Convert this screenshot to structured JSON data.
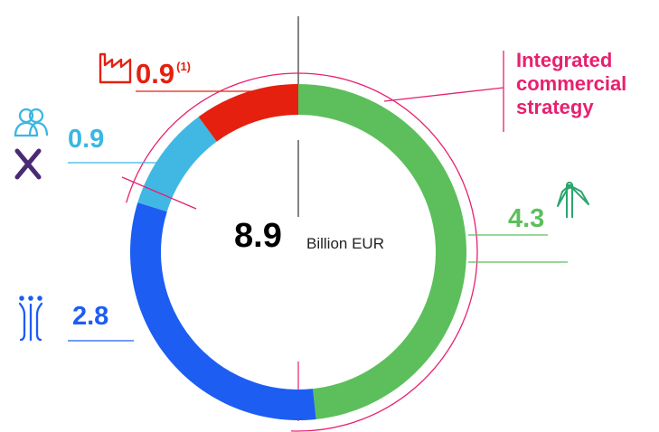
{
  "chart_data": {
    "type": "pie",
    "donut": true,
    "total": "8.9",
    "total_unit": "Billion EUR",
    "slices": [
      {
        "value": 4.3,
        "label": "4.3",
        "color": "#5cbf5c",
        "icon": "wind-turbine-icon"
      },
      {
        "value": 2.8,
        "label": "2.8",
        "color": "#1d5df2",
        "icon": "water-tower-icon"
      },
      {
        "value": 0.9,
        "label": "0.9",
        "color": "#41b8e4",
        "icons": [
          "people-icon",
          "cross-icon"
        ]
      },
      {
        "value": 0.9,
        "label": "0.9",
        "footnote": "(1)",
        "color": "#e5200f",
        "icon": "factory-icon"
      }
    ],
    "annotation": {
      "lines": [
        "Integrated",
        "commercial",
        "strategy"
      ],
      "color": "#e8206f"
    }
  }
}
